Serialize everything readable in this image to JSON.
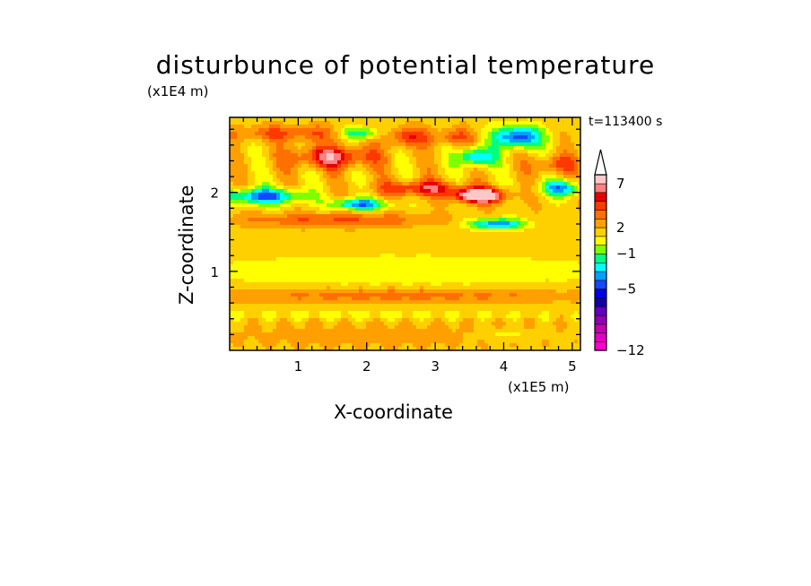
{
  "chart_data": {
    "type": "heatmap",
    "title": "disturbunce of potential temperature",
    "time_label": "t=113400 s",
    "xlabel": "X-coordinate",
    "ylabel": "Z-coordinate",
    "x_unit": "(x1E5 m)",
    "y_unit": "(x1E4 m)",
    "xlim": [
      0,
      5.12
    ],
    "ylim": [
      0,
      2.95
    ],
    "x_ticks": [
      1,
      2,
      3,
      4,
      5
    ],
    "y_ticks": [
      1,
      2
    ],
    "colorbar": {
      "levels": [
        -12,
        -11,
        -10,
        -9,
        -8,
        -7,
        -6,
        -5,
        -4,
        -3,
        -2,
        -1,
        0,
        1,
        2,
        3,
        4,
        5,
        6,
        7,
        8,
        9,
        10
      ],
      "labels": [
        -12,
        -5,
        -1,
        2,
        7
      ],
      "colors": [
        "#ff00cc",
        "#e000c0",
        "#c000b0",
        "#9000b0",
        "#6000c0",
        "#1400a0",
        "#0000e0",
        "#1448ff",
        "#00a0ff",
        "#00ffff",
        "#00ff80",
        "#80ff00",
        "#ffff00",
        "#ffd000",
        "#ffa000",
        "#ff7000",
        "#ff3800",
        "#e80000",
        "#ff8080",
        "#ffc8c8"
      ],
      "extend": "max"
    },
    "features": [
      {
        "x": 2.55,
        "z": 1.0,
        "sx": 3.2,
        "sz": 0.22,
        "amp": -1.4
      },
      {
        "x": 0.5,
        "z": 1.95,
        "sx": 0.55,
        "sz": 0.1,
        "amp": -6.0
      },
      {
        "x": 1.9,
        "z": 1.85,
        "sx": 0.4,
        "sz": 0.07,
        "amp": -5.5
      },
      {
        "x": 3.9,
        "z": 1.6,
        "sx": 0.4,
        "sz": 0.07,
        "amp": -5.5
      },
      {
        "x": 3.65,
        "z": 1.96,
        "sx": 0.35,
        "sz": 0.09,
        "amp": 8.5
      },
      {
        "x": 1.5,
        "z": 2.45,
        "sx": 0.6,
        "sz": 0.14,
        "amp": 4.5
      },
      {
        "x": 2.8,
        "z": 2.05,
        "sx": 0.6,
        "sz": 0.1,
        "amp": 4.0
      },
      {
        "x": 1.5,
        "z": 1.65,
        "sx": 1.4,
        "sz": 0.09,
        "amp": 2.5
      },
      {
        "x": 0.9,
        "z": 2.75,
        "sx": 1.0,
        "sz": 0.1,
        "amp": 2.5
      },
      {
        "x": 1.9,
        "z": 2.75,
        "sx": 0.3,
        "sz": 0.08,
        "amp": -4.5
      },
      {
        "x": 4.2,
        "z": 2.7,
        "sx": 0.35,
        "sz": 0.14,
        "amp": -6.5
      },
      {
        "x": 3.6,
        "z": 2.45,
        "sx": 0.25,
        "sz": 0.12,
        "amp": -5.5
      },
      {
        "x": 4.85,
        "z": 2.05,
        "sx": 0.3,
        "sz": 0.1,
        "amp": -5.0
      },
      {
        "x": 3.3,
        "z": 2.7,
        "sx": 0.3,
        "sz": 0.1,
        "amp": 2.5
      },
      {
        "x": 2.6,
        "z": 2.7,
        "sx": 0.35,
        "sz": 0.12,
        "amp": 3.0
      },
      {
        "x": 4.75,
        "z": 2.35,
        "sx": 0.3,
        "sz": 0.12,
        "amp": 2.8
      },
      {
        "x": 2.2,
        "z": 0.2,
        "sx": 2.6,
        "sz": 0.18,
        "amp": 0.9
      },
      {
        "x": 2.4,
        "z": 0.7,
        "sx": 2.8,
        "sz": 0.1,
        "amp": 2.0
      },
      {
        "x": 2.0,
        "z": 0.45,
        "sx": 2.4,
        "sz": 0.06,
        "amp": -1.2
      },
      {
        "x": 4.0,
        "z": 0.2,
        "sx": 0.5,
        "sz": 0.08,
        "amp": -1.3
      }
    ]
  }
}
